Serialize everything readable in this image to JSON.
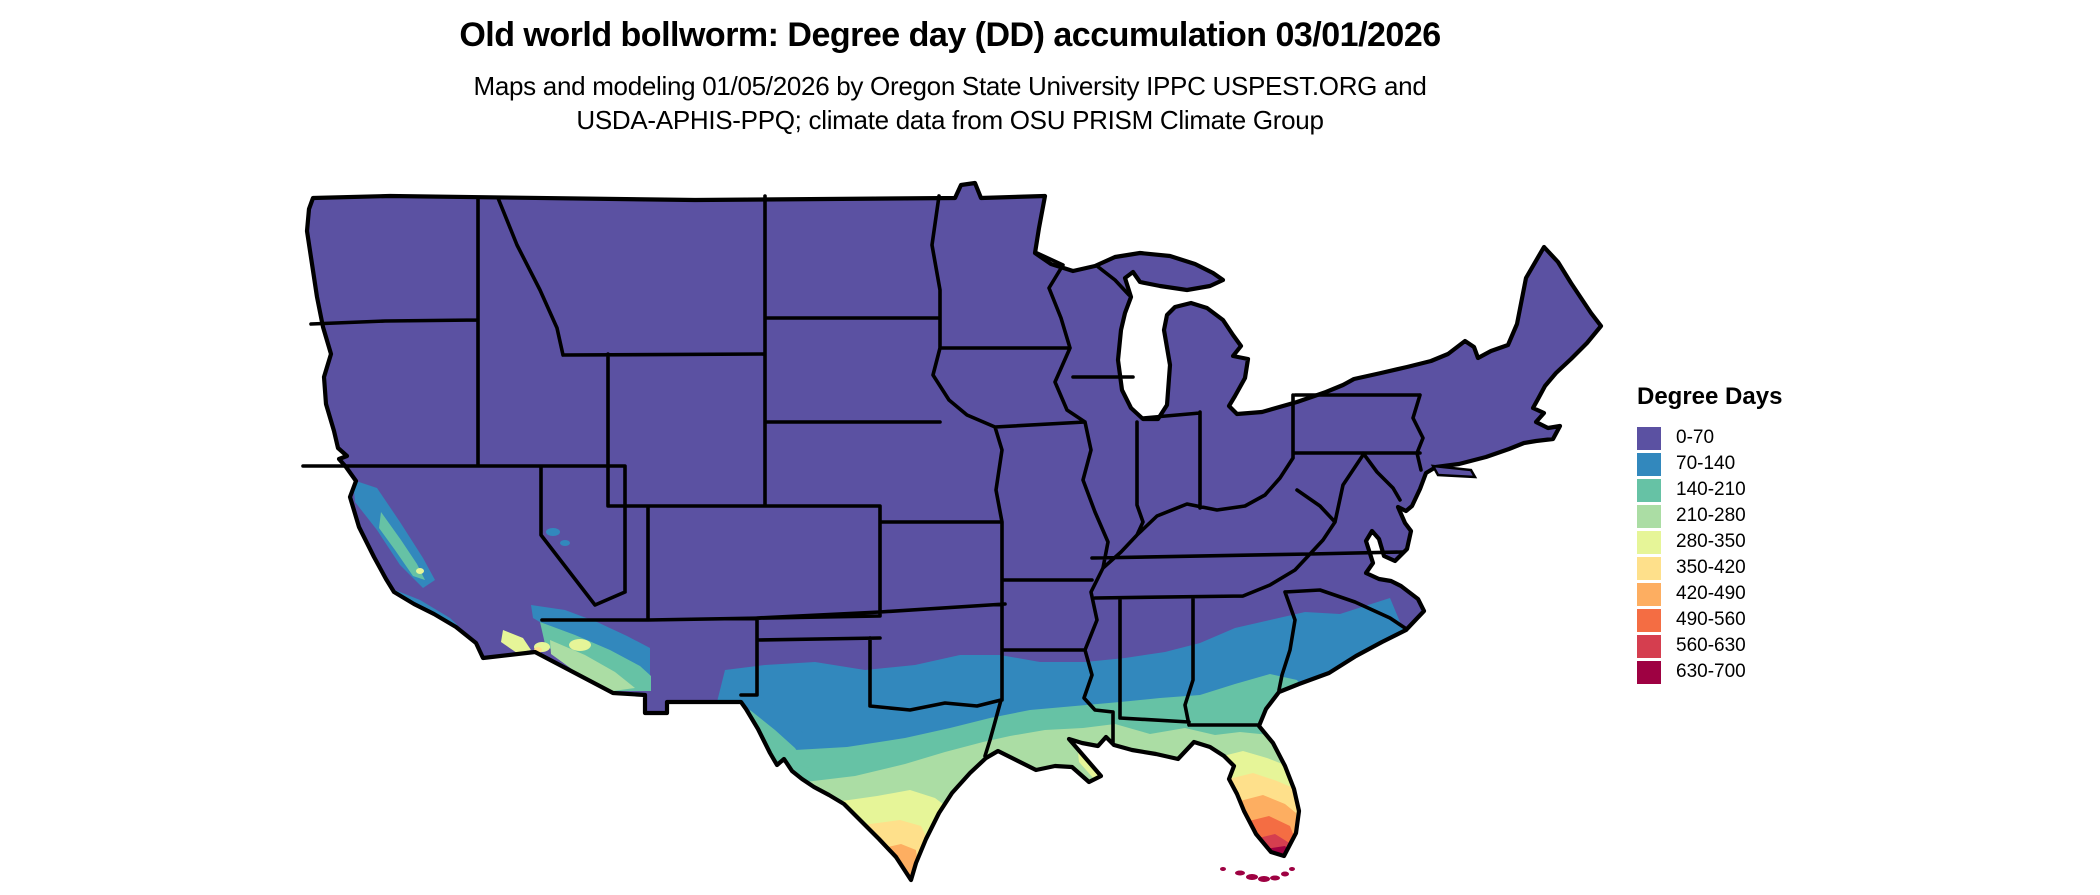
{
  "page": {
    "title": "Old world bollworm: Degree day (DD) accumulation 03/01/2026",
    "subtitle_line1": "Maps and modeling 01/05/2026 by Oregon State University IPPC USPEST.ORG and",
    "subtitle_line2": "USDA-APHIS-PPQ; climate data from OSU PRISM Climate Group"
  },
  "legend": {
    "title": "Degree Days",
    "items": [
      {
        "label": "0-70",
        "color": "#5b51a2"
      },
      {
        "label": "70-140",
        "color": "#3288bd"
      },
      {
        "label": "140-210",
        "color": "#66c2a5"
      },
      {
        "label": "210-280",
        "color": "#abdda4"
      },
      {
        "label": "280-350",
        "color": "#e6f598"
      },
      {
        "label": "350-420",
        "color": "#fee08b"
      },
      {
        "label": "420-490",
        "color": "#fdae61"
      },
      {
        "label": "490-560",
        "color": "#f46d43"
      },
      {
        "label": "560-630",
        "color": "#d53e4f"
      },
      {
        "label": "630-700",
        "color": "#9e0142"
      }
    ]
  },
  "map": {
    "description": "Continental United States raster map of accumulated degree days; mostly 0-70 (purple) with warmer accumulation bands across southern California, southern Arizona, southern Texas, the Gulf Coast and peninsular Florida, peaking at 630-700 in the Florida Keys",
    "background": "#ffffff",
    "border_color": "#000000"
  }
}
